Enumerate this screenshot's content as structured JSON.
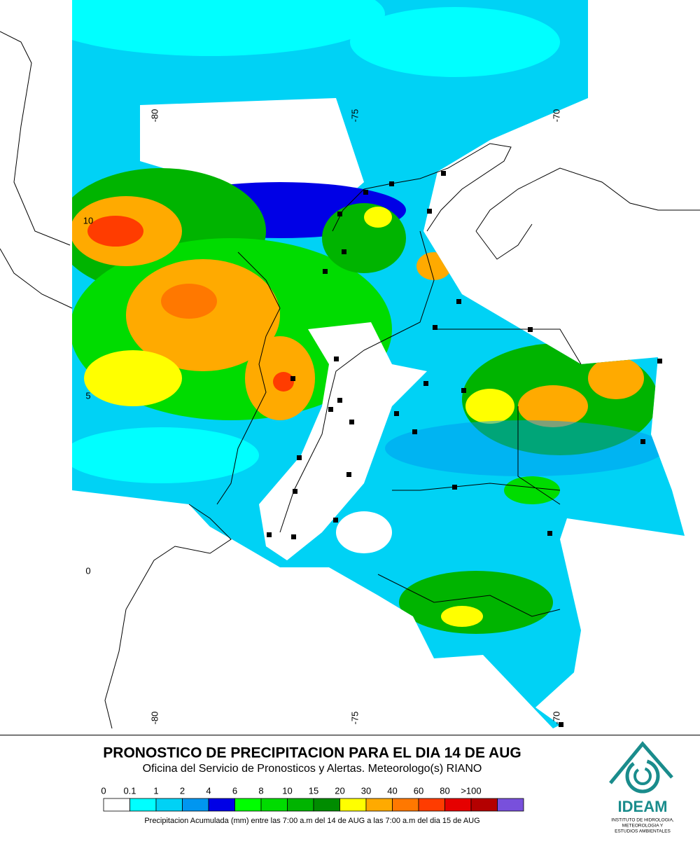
{
  "map": {
    "lon_labels": [
      "-80",
      "-75",
      "-70"
    ],
    "lat_labels": [
      "10",
      "5",
      "0"
    ]
  },
  "footer": {
    "title": "PRONOSTICO DE PRECIPITACION PARA EL DIA 14 DE AUG",
    "subtitle": "Oficina del Servicio de Pronosticos y Alertas. Meteorologo(s) RIANO",
    "caption": "Precipitacion Acumulada (mm) entre las 7:00 a.m del 14 de AUG a las 7:00 a.m del dia 15 de AUG"
  },
  "legend": {
    "labels": [
      "0",
      "0.1",
      "1",
      "2",
      "4",
      "6",
      "8",
      "10",
      "15",
      "20",
      "30",
      "40",
      "60",
      "80",
      ">100"
    ],
    "colors": [
      "#ffffff",
      "#00ffff",
      "#00d2f5",
      "#0096f0",
      "#0000e6",
      "#00ff00",
      "#00dc00",
      "#00b400",
      "#008c00",
      "#ffff00",
      "#ffaa00",
      "#ff7800",
      "#ff3c00",
      "#e60000",
      "#b40000",
      "#7850dc"
    ]
  },
  "logo": {
    "name": "IDEAM",
    "lines": [
      "INSTITUTO DE HIDROLOGIA,",
      "METEOROLOGIA Y",
      "ESTUDIOS AMBIENTALES"
    ]
  }
}
